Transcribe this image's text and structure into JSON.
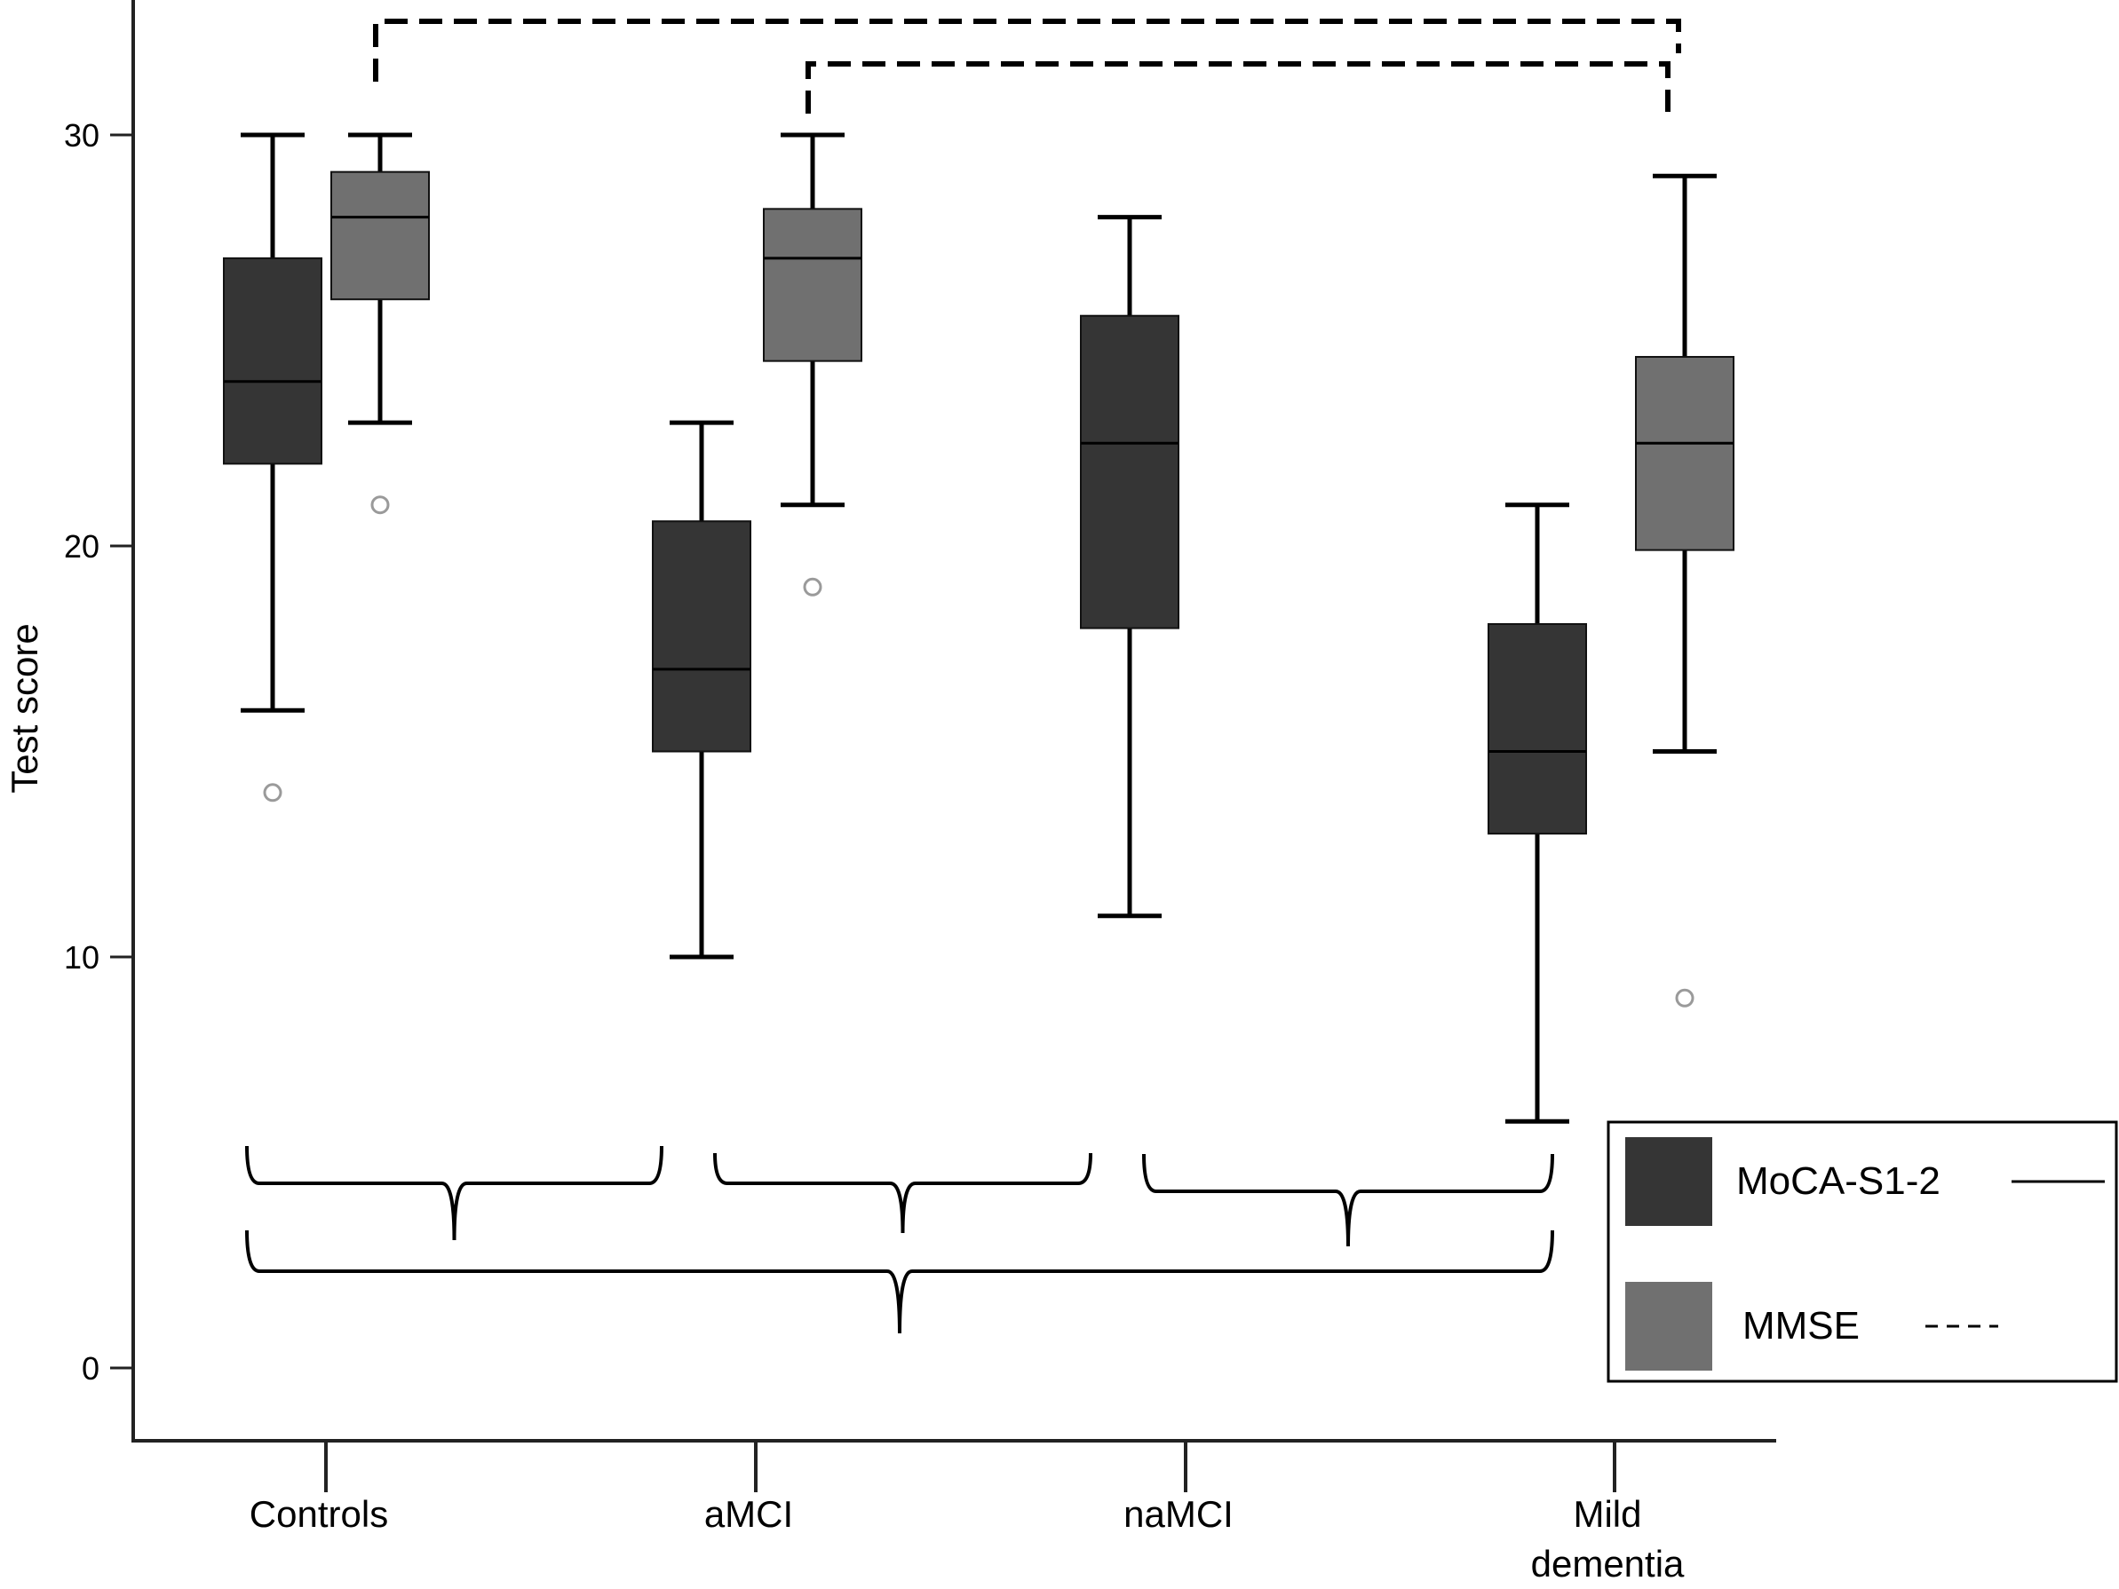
{
  "chart_data": {
    "type": "boxplot",
    "ylabel": "Test score",
    "xlabel": "",
    "ylim": [
      -1.8,
      33
    ],
    "yticks": [
      0,
      10,
      20,
      30
    ],
    "categories": [
      "Controls",
      "aMCI",
      "naMCI",
      "Mild\ndementia"
    ],
    "category_lines": [
      [
        "Controls"
      ],
      [
        "aMCI"
      ],
      [
        "naMCI"
      ],
      [
        "Mild",
        "dementia"
      ]
    ],
    "series": [
      {
        "name": "MoCA-S1-2",
        "color": "#353535",
        "boxes": [
          {
            "category": "Controls",
            "whisker_low": 16,
            "q1": 22,
            "median": 24,
            "q3": 27,
            "whisker_high": 30,
            "outliers": [
              14
            ]
          },
          {
            "category": "aMCI",
            "whisker_low": 10,
            "q1": 15,
            "median": 17,
            "q3": 20.6,
            "whisker_high": 23,
            "outliers": []
          },
          {
            "category": "naMCI",
            "whisker_low": 11,
            "q1": 18,
            "median": 22.5,
            "q3": 25.6,
            "whisker_high": 28,
            "outliers": []
          },
          {
            "category": "Mild\ndementia",
            "whisker_low": 6,
            "q1": 13,
            "median": 15,
            "q3": 18.1,
            "whisker_high": 21,
            "outliers": []
          }
        ]
      },
      {
        "name": "MMSE",
        "color": "#707070",
        "boxes": [
          {
            "category": "Controls",
            "whisker_low": 23,
            "q1": 26,
            "median": 28,
            "q3": 29.1,
            "whisker_high": 30,
            "outliers": [
              21
            ]
          },
          {
            "category": "aMCI",
            "whisker_low": 21,
            "q1": 24.5,
            "median": 27,
            "q3": 28.2,
            "whisker_high": 30,
            "outliers": [
              19
            ]
          },
          {
            "category": "Mild\ndementia",
            "whisker_low": 15,
            "q1": 19.9,
            "median": 22.5,
            "q3": 24.6,
            "whisker_high": 29,
            "outliers": [
              9
            ]
          }
        ]
      }
    ],
    "legend": {
      "placement": "bottom-right",
      "entries": [
        {
          "label": "MoCA-S1-2",
          "swatch_color": "#353535",
          "line_style": "solid"
        },
        {
          "label": "MMSE",
          "swatch_color": "#707070",
          "line_style": "dashed"
        }
      ]
    },
    "significance_brackets": {
      "MoCA-S1-2": [
        {
          "from": "Controls",
          "to": "aMCI"
        },
        {
          "from": "aMCI",
          "to": "naMCI"
        },
        {
          "from": "naMCI",
          "to": "Mild\ndementia"
        },
        {
          "from": "Controls",
          "to": "Mild\ndementia"
        }
      ],
      "MMSE": [
        {
          "from": "Controls",
          "to": "Mild\ndementia"
        },
        {
          "from": "aMCI",
          "to": "Mild\ndementia"
        }
      ]
    },
    "grid": false
  }
}
